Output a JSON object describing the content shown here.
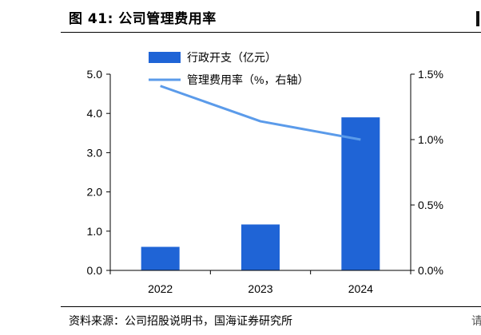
{
  "figure": {
    "title": "图 41:  公司管理费用率",
    "source": "资料来源：公司招股说明书，国海证券研究所",
    "right_glyph": "请"
  },
  "colors": {
    "bar": "#1f64d6",
    "line": "#5b9bea",
    "axis": "#000000"
  },
  "chart_data": {
    "type": "bar",
    "categories": [
      "2022",
      "2023",
      "2024"
    ],
    "series": [
      {
        "name": "行政开支（亿元）",
        "type": "bar",
        "axis": "left",
        "values": [
          0.6,
          1.17,
          3.9
        ]
      },
      {
        "name": "管理费用率（%，右轴）",
        "type": "line",
        "axis": "right",
        "values": [
          1.41,
          1.14,
          1.0
        ]
      }
    ],
    "ylim": [
      0,
      5
    ],
    "y_ticks": [
      "5.0",
      "4.0",
      "3.0",
      "2.0",
      "1.0",
      "0.0"
    ],
    "y2lim": [
      0,
      1.5
    ],
    "y2_ticks": [
      "1.5%",
      "1.0%",
      "0.5%",
      "0.0%"
    ],
    "legend_position": "top",
    "grid": false
  }
}
